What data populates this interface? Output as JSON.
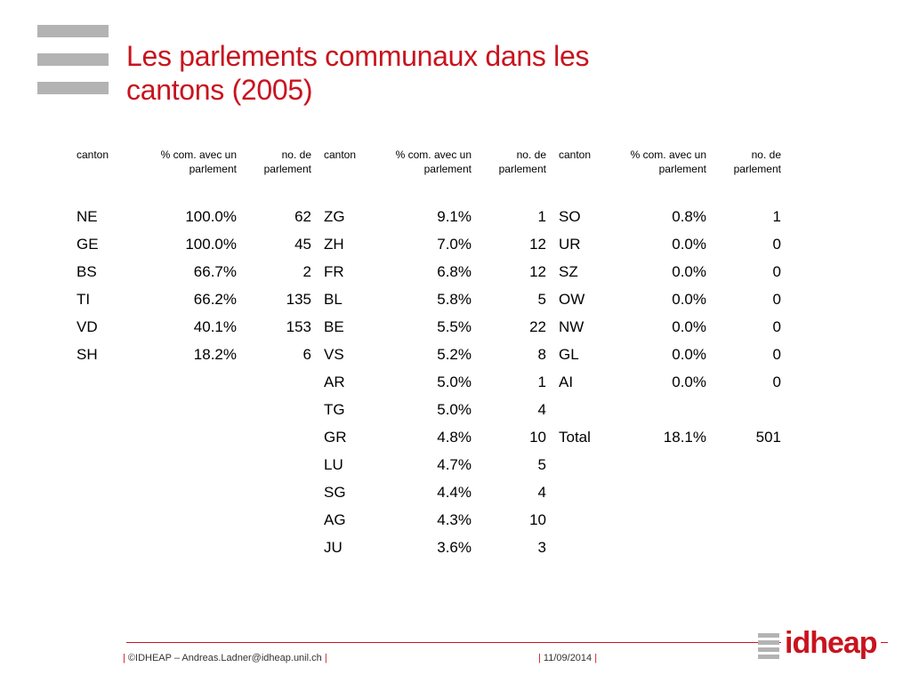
{
  "title": {
    "line1": "Les parlements communaux dans les",
    "line2": "cantons (2005)"
  },
  "table": {
    "headers": [
      [
        "canton",
        "% com. avec un parlement",
        "no. de parlement"
      ],
      [
        "canton",
        "% com. avec un parlement",
        "no. de parlement"
      ],
      [
        "canton",
        "% com. avec un parlement",
        "no. de parlement"
      ]
    ],
    "rows": [
      [
        "NE",
        "100.0%",
        "62",
        "ZG",
        "9.1%",
        "1",
        "SO",
        "0.8%",
        "1"
      ],
      [
        "GE",
        "100.0%",
        "45",
        "ZH",
        "7.0%",
        "12",
        "UR",
        "0.0%",
        "0"
      ],
      [
        "BS",
        "66.7%",
        "2",
        "FR",
        "6.8%",
        "12",
        "SZ",
        "0.0%",
        "0"
      ],
      [
        "TI",
        "66.2%",
        "135",
        "BL",
        "5.8%",
        "5",
        "OW",
        "0.0%",
        "0"
      ],
      [
        "VD",
        "40.1%",
        "153",
        "BE",
        "5.5%",
        "22",
        "NW",
        "0.0%",
        "0"
      ],
      [
        "SH",
        "18.2%",
        "6",
        "VS",
        "5.2%",
        "8",
        "GL",
        "0.0%",
        "0"
      ],
      [
        "",
        "",
        "",
        "AR",
        "5.0%",
        "1",
        "AI",
        "0.0%",
        "0"
      ],
      [
        "",
        "",
        "",
        "TG",
        "5.0%",
        "4",
        "",
        "",
        ""
      ],
      [
        "",
        "",
        "",
        "GR",
        "4.8%",
        "10",
        "Total",
        "18.1%",
        "501"
      ],
      [
        "",
        "",
        "",
        "LU",
        "4.7%",
        "5",
        "",
        "",
        ""
      ],
      [
        "",
        "",
        "",
        "SG",
        "4.4%",
        "4",
        "",
        "",
        ""
      ],
      [
        "",
        "",
        "",
        "AG",
        "4.3%",
        "10",
        "",
        "",
        ""
      ],
      [
        "",
        "",
        "",
        "JU",
        "3.6%",
        "3",
        "",
        "",
        ""
      ]
    ]
  },
  "footer": {
    "copyright": "©IDHEAP – Andreas.Ladner@idheap.unil.ch",
    "date": "11/09/2014",
    "separator": "|",
    "logo_text": "idheap"
  },
  "colors": {
    "accent": "#c8141e",
    "grey": "#b3b3b3"
  }
}
